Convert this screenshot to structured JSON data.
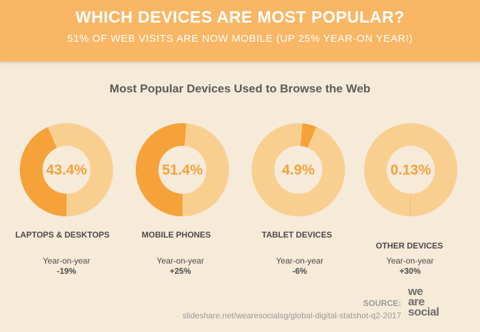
{
  "header": {
    "title": "WHICH DEVICES ARE MOST POPULAR?",
    "subtitle": "51% OF WEB VISITS ARE NOW MOBILE (UP 25% YEAR-ON YEAR!)"
  },
  "chart_data": {
    "type": "pie",
    "title": "Most Popular Devices Used to Browse the Web",
    "series": [
      {
        "name": "LAPTOPS & DESKTOPS",
        "value": 43.4,
        "label": "43.4%",
        "yoy_label": "Year-on-year",
        "yoy": "-19%"
      },
      {
        "name": "MOBILE PHONES",
        "value": 51.4,
        "label": "51.4%",
        "yoy_label": "Year-on-year",
        "yoy": "+25%"
      },
      {
        "name": "TABLET DEVICES",
        "value": 4.9,
        "label": "4.9%",
        "yoy_label": "Year-on-year",
        "yoy": "-6%"
      },
      {
        "name": "OTHER DEVICES",
        "value": 0.13,
        "label": "0.13%",
        "yoy_label": "Year-on-year",
        "yoy": "+30%"
      }
    ]
  },
  "source": {
    "label": "SOURCE:",
    "url": "slideshare.net/wearesocialsg/global-digital-statshot-q2-2017"
  },
  "logo": {
    "lines": [
      "we",
      "are",
      "social"
    ]
  },
  "colors": {
    "accent": "#f5a23a",
    "ring_base": "#f9cf90",
    "banner": "#f9b765",
    "background": "#f6ead8"
  }
}
